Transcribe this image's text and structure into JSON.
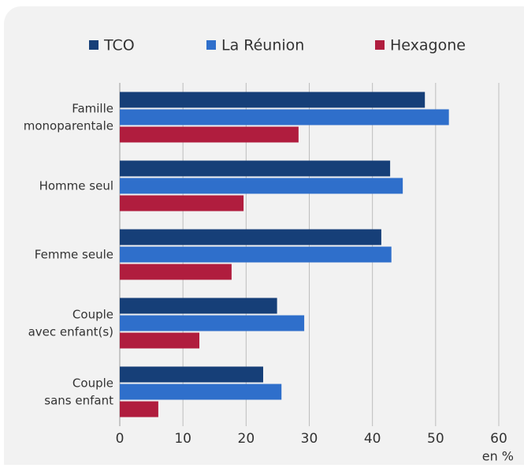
{
  "chart_data": {
    "type": "hbar",
    "categories": [
      [
        "Famille",
        "monoparentale"
      ],
      [
        "Homme seul"
      ],
      [
        "Femme seule"
      ],
      [
        "Couple",
        "avec enfant(s)"
      ],
      [
        "Couple",
        "sans enfant"
      ]
    ],
    "series": [
      {
        "name": "TCO",
        "color": "#163f78",
        "values": [
          48.3,
          42.8,
          41.4,
          24.9,
          22.7
        ]
      },
      {
        "name": "La Réunion",
        "color": "#2f6fcb",
        "values": [
          52.1,
          44.8,
          43.0,
          29.2,
          25.6
        ]
      },
      {
        "name": "Hexagone",
        "color": "#b01d3e",
        "values": [
          28.3,
          19.6,
          17.7,
          12.6,
          6.1
        ]
      }
    ],
    "xlim": [
      0,
      60
    ],
    "xticks": [
      0,
      10,
      20,
      30,
      40,
      50,
      60
    ],
    "xlabel": "en %",
    "grid": true
  }
}
